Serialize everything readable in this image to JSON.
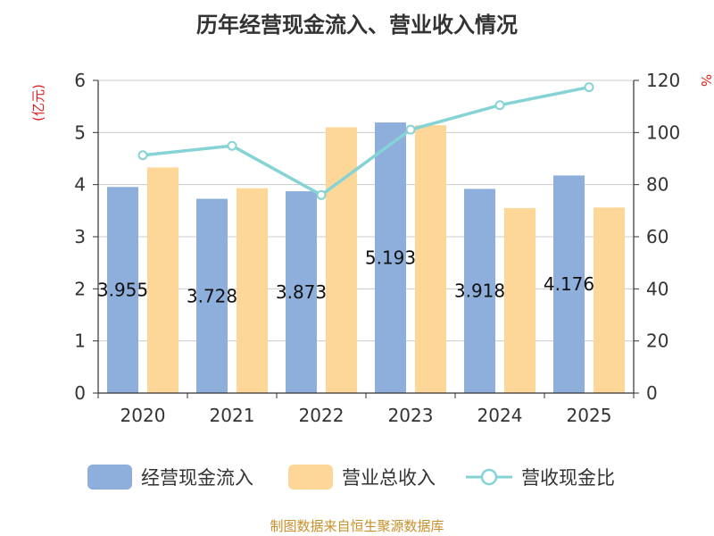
{
  "chart_data": {
    "type": "bar",
    "title": "历年经营现金流入、营业收入情况",
    "categories": [
      "2020",
      "2021",
      "2022",
      "2023",
      "2024",
      "2025"
    ],
    "series": [
      {
        "name": "经营现金流入",
        "type": "bar",
        "axis": "left",
        "color": "#8eaedb",
        "values": [
          3.955,
          3.728,
          3.873,
          5.193,
          3.918,
          4.176
        ],
        "labels": [
          "3.955",
          "3.728",
          "3.873",
          "5.193",
          "3.918",
          "4.176"
        ]
      },
      {
        "name": "营业总收入",
        "type": "bar",
        "axis": "left",
        "color": "#fdd797",
        "values": [
          4.33,
          3.93,
          5.1,
          5.14,
          3.55,
          3.56
        ]
      },
      {
        "name": "营收现金比",
        "type": "line",
        "axis": "right",
        "color": "#86d3d6",
        "values": [
          91.3,
          94.9,
          76.0,
          101.1,
          110.5,
          117.4
        ]
      }
    ],
    "y_left": {
      "label": "(亿元)",
      "min": 0,
      "max": 6,
      "ticks": [
        "0",
        "1",
        "2",
        "3",
        "4",
        "5",
        "6"
      ]
    },
    "y_right": {
      "label": "%",
      "min": 0,
      "max": 120,
      "ticks": [
        "0",
        "20",
        "40",
        "60",
        "80",
        "100",
        "120"
      ]
    },
    "grid": true,
    "legend_position": "bottom"
  },
  "source": "制图数据来自恒生聚源数据库"
}
